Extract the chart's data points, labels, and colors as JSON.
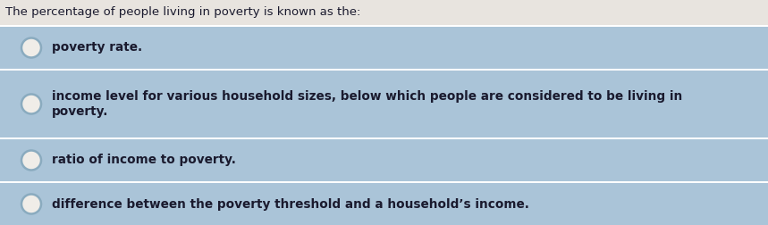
{
  "question": "The percentage of people living in poverty is known as the:",
  "options": [
    "poverty rate.",
    "income level for various household sizes, below which people are considered to be living in\npoverty.",
    "ratio of income to poverty.",
    "difference between the poverty threshold and a household’s income."
  ],
  "question_bg": "#e8e4df",
  "option_bg": "#aac4d8",
  "separator_color": "#ffffff",
  "text_color": "#1a1a2e",
  "question_fontsize": 9.5,
  "option_fontsize": 9.8,
  "circle_fill": "#f0ede8",
  "circle_edge": "#8aabbf",
  "fig_width": 8.59,
  "fig_height": 2.52,
  "dpi": 100
}
